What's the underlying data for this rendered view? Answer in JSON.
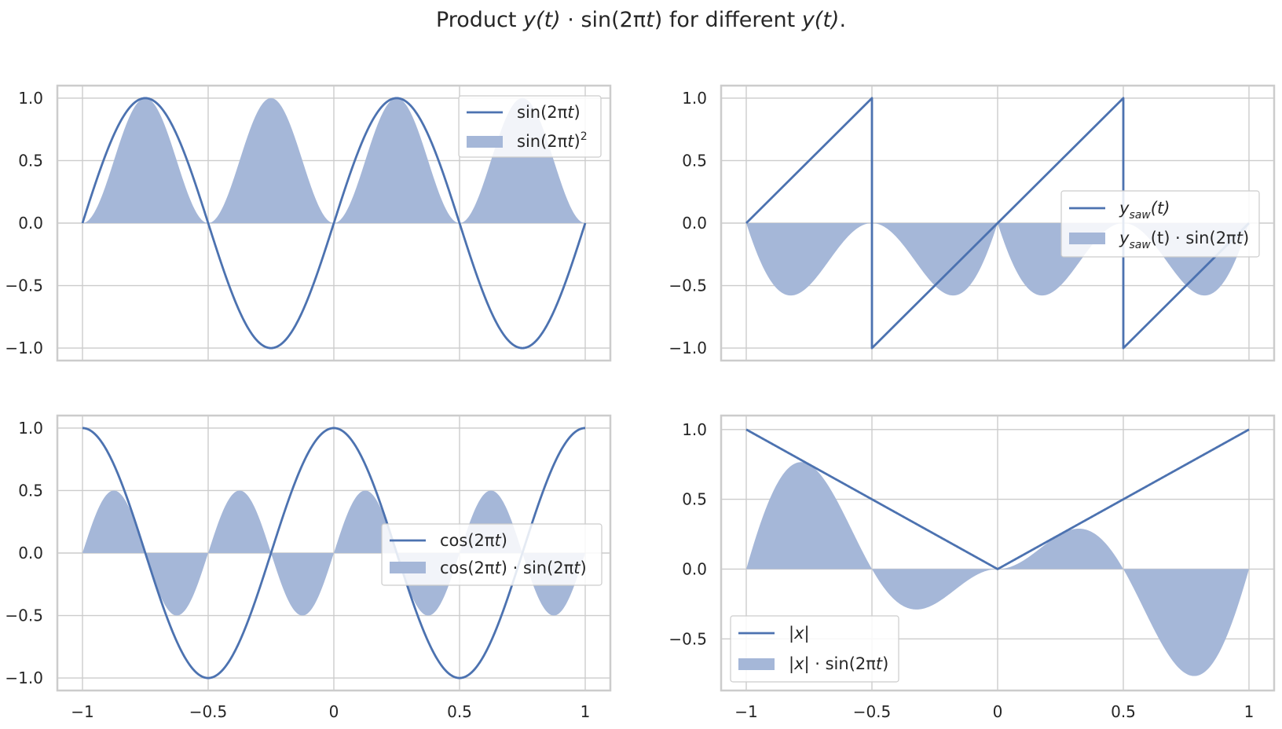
{
  "figure": {
    "title": {
      "prefix": "Product ",
      "y": "y",
      "t1": "(t)",
      "dot": "·",
      "sin": "sin(2π",
      "t2": "t",
      "close": ")",
      "middle": " for different ",
      "y2": "y",
      "t3": "(t)",
      "end": "."
    }
  },
  "chart_data": [
    {
      "type": "line",
      "panel": "top-left",
      "function_line": "sin(2*pi*t)",
      "function_fill": "sin(2*pi*t)^2",
      "x_range": [
        -1,
        1
      ],
      "ylim": [
        -1.1,
        1.1
      ],
      "xticks": [
        "−1",
        "−0.5",
        "0",
        "0.5",
        "1"
      ],
      "yticks": [
        1.0,
        0.5,
        0.0,
        -0.5,
        -1.0
      ],
      "ytick_labels": [
        "1.0",
        "0.5",
        "0.0",
        "−0.5",
        "−1.0"
      ],
      "show_xtick_labels": false,
      "legend": {
        "placement": "upper-right",
        "line": {
          "pre": "sin(2",
          "pi": "π",
          "var": "t",
          "post": ")"
        },
        "fill": {
          "pre": "sin(2",
          "pi": "π",
          "var": "t",
          "post": ")",
          "sup": "2"
        }
      },
      "grid": true
    },
    {
      "type": "line",
      "panel": "top-right",
      "function_line": "sawtooth period 1, from -1 to 1",
      "function_fill": "sawtooth(t)*sin(2*pi*t)",
      "x_range": [
        -1,
        1
      ],
      "ylim": [
        -1.1,
        1.1
      ],
      "xticks": [
        "−1",
        "−0.5",
        "0",
        "0.5",
        "1"
      ],
      "yticks": [
        1.0,
        0.5,
        0.0,
        -0.5,
        -1.0
      ],
      "ytick_labels": [
        "1.0",
        "0.5",
        "0.0",
        "−0.5",
        "−1.0"
      ],
      "show_xtick_labels": false,
      "legend": {
        "placement": "center-right",
        "line": {
          "y": "y",
          "sub": "saw",
          "post": "(t)"
        },
        "fill": {
          "y": "y",
          "sub": "saw",
          "post": "(t) · sin(2π",
          "var": "t",
          "close": ")"
        }
      },
      "grid": true
    },
    {
      "type": "line",
      "panel": "bottom-left",
      "function_line": "cos(2*pi*t)",
      "function_fill": "cos(2*pi*t)*sin(2*pi*t)",
      "x_range": [
        -1,
        1
      ],
      "ylim": [
        -1.1,
        1.1
      ],
      "xticks": [
        "−1",
        "−0.5",
        "0",
        "0.5",
        "1"
      ],
      "yticks": [
        1.0,
        0.5,
        0.0,
        -0.5,
        -1.0
      ],
      "ytick_labels": [
        "1.0",
        "0.5",
        "0.0",
        "−0.5",
        "−1.0"
      ],
      "show_xtick_labels": true,
      "legend": {
        "placement": "center-right",
        "line": {
          "pre": "cos(2π",
          "var": "t",
          "post": ")"
        },
        "fill": {
          "pre": "cos(2π",
          "var": "t",
          "post": ") · sin(2π",
          "var2": "t",
          "close": ")"
        }
      },
      "grid": true
    },
    {
      "type": "line",
      "panel": "bottom-right",
      "function_line": "|t|",
      "function_fill": "|t|*sin(2*pi*t)",
      "x_range": [
        -1,
        1
      ],
      "ylim": [
        -0.87,
        1.1
      ],
      "xticks": [
        "−1",
        "−0.5",
        "0",
        "0.5",
        "1"
      ],
      "yticks": [
        1.0,
        0.5,
        0.0,
        -0.5
      ],
      "ytick_labels": [
        "1.0",
        "0.5",
        "0.0",
        "−0.5"
      ],
      "show_xtick_labels": true,
      "legend": {
        "placement": "lower-left",
        "line": {
          "bar1": "|",
          "var": "x",
          "bar2": "|"
        },
        "fill": {
          "bar1": "|",
          "var": "x",
          "bar2": "|",
          "post": " · sin(2π",
          "var2": "t",
          "close": ")"
        }
      },
      "grid": true
    }
  ],
  "colors": {
    "line": "#4c72b0",
    "fill": "#a5b7d8",
    "grid": "#cccccc",
    "spine": "#cccccc",
    "text": "#262626"
  }
}
